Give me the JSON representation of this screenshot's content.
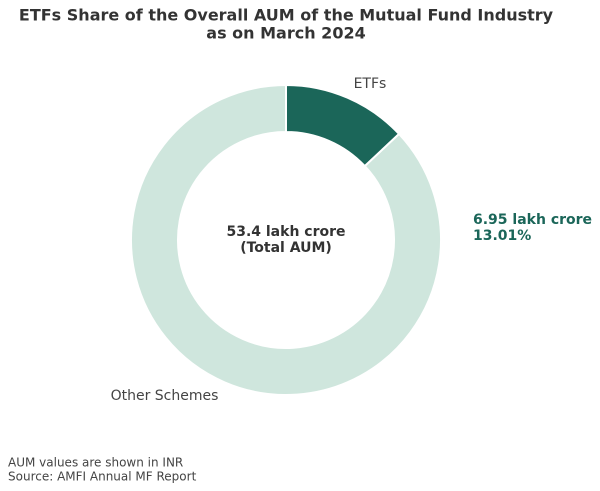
{
  "chart_data": {
    "type": "pie",
    "title": [
      "ETFs Share of the Overall AUM of the Mutual Fund Industry",
      "as on March 2024"
    ],
    "categories": [
      "ETFs",
      "Other Schemes"
    ],
    "values": [
      13.01,
      86.99
    ],
    "value_labels": [
      "13.01%",
      null
    ],
    "colors": [
      "#1b6659",
      "#cfe6dd"
    ],
    "donut": true,
    "annotations": [
      "6.95 lakh crore"
    ],
    "center_label": [
      "53.4 lakh crore",
      "(Total AUM)"
    ],
    "notes": [
      "AUM values are shown in INR",
      "Source: AMFI Annual MF Report"
    ]
  }
}
